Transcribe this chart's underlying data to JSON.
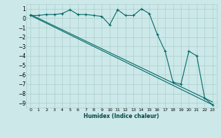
{
  "xlabel": "Humidex (Indice chaleur)",
  "background_color": "#cce8e8",
  "grid_color": "#aacece",
  "line_color": "#006666",
  "xlim": [
    -0.5,
    23.5
  ],
  "ylim": [
    -9.5,
    1.5
  ],
  "yticks": [
    1,
    0,
    -1,
    -2,
    -3,
    -4,
    -5,
    -6,
    -7,
    -8,
    -9
  ],
  "xticks": [
    0,
    1,
    2,
    3,
    4,
    5,
    6,
    7,
    8,
    9,
    10,
    11,
    12,
    13,
    14,
    15,
    16,
    17,
    18,
    19,
    20,
    21,
    22,
    23
  ],
  "series1_x": [
    0,
    1,
    2,
    3,
    4,
    5,
    6,
    7,
    8,
    9,
    10,
    11,
    12,
    13,
    14,
    15,
    16,
    17,
    18,
    19,
    20,
    21,
    22,
    23
  ],
  "series1_y": [
    0.3,
    0.3,
    0.4,
    0.4,
    0.5,
    0.9,
    0.4,
    0.4,
    0.3,
    0.2,
    -0.7,
    0.9,
    0.3,
    0.3,
    1.0,
    0.5,
    -1.7,
    -3.5,
    -6.8,
    -7.0,
    -3.5,
    -4.0,
    -8.5,
    -9.2
  ],
  "line1_x": [
    0,
    23
  ],
  "line1_y": [
    0.3,
    -9.2
  ],
  "line2_x": [
    0,
    23
  ],
  "line2_y": [
    0.4,
    -8.9
  ]
}
